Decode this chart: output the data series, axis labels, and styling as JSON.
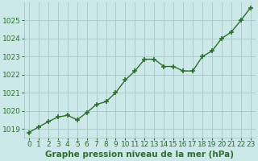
{
  "x": [
    0,
    1,
    2,
    3,
    4,
    5,
    6,
    7,
    8,
    9,
    10,
    11,
    12,
    13,
    14,
    15,
    16,
    17,
    18,
    19,
    20,
    21,
    22,
    23
  ],
  "y": [
    1018.8,
    1019.1,
    1019.4,
    1019.65,
    1019.75,
    1019.5,
    1019.9,
    1020.35,
    1020.5,
    1021.0,
    1021.7,
    1022.2,
    1022.85,
    1022.85,
    1022.45,
    1022.45,
    1022.2,
    1022.2,
    1023.0,
    1023.3,
    1024.0,
    1024.35,
    1025.0,
    1025.7
  ],
  "line_color": "#2d6e2d",
  "marker": "+",
  "marker_size": 4,
  "line_width": 1.0,
  "bg_color": "#cce8e8",
  "grid_color": "#a8c8c8",
  "xlabel": "Graphe pression niveau de la mer (hPa)",
  "xlabel_color": "#2d6e2d",
  "xlabel_fontsize": 7.5,
  "tick_color": "#2d6e2d",
  "tick_fontsize": 6.5,
  "ylim": [
    1018.5,
    1026.0
  ],
  "yticks": [
    1019,
    1020,
    1021,
    1022,
    1023,
    1024,
    1025
  ],
  "xlim": [
    -0.5,
    23.5
  ],
  "xticks": [
    0,
    1,
    2,
    3,
    4,
    5,
    6,
    7,
    8,
    9,
    10,
    11,
    12,
    13,
    14,
    15,
    16,
    17,
    18,
    19,
    20,
    21,
    22,
    23
  ]
}
